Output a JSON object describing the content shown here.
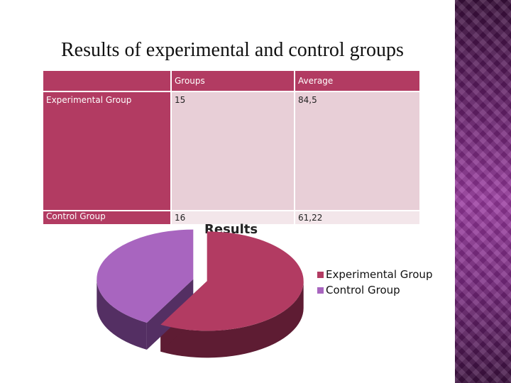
{
  "slide": {
    "title": "Results of experimental and control groups"
  },
  "table": {
    "headers": [
      "",
      "Groups",
      "Average"
    ],
    "rows": [
      {
        "label": "Experimental Group",
        "groups": "15",
        "average": "84,5"
      },
      {
        "label": "Control Group",
        "groups": "16",
        "average": "61,22"
      }
    ]
  },
  "chart_data": {
    "type": "pie",
    "style": "3d-exploded",
    "title": "Results",
    "categories": [
      "Experimental Group",
      "Control Group"
    ],
    "values": [
      84.5,
      61.22
    ],
    "colors": [
      "#b23b62",
      "#a865bf"
    ],
    "side_colors": [
      "#5e1c33",
      "#542f63"
    ],
    "legend_position": "right"
  },
  "colors": {
    "table_header": "#b23b62",
    "table_cell": "#e8cfd7",
    "table_cell_light": "#f3e6ea",
    "panel": "#7b2a82"
  }
}
